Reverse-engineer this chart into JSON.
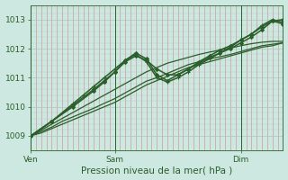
{
  "title": "Pression niveau de la mer( hPa )",
  "ylabel_values": [
    1009,
    1010,
    1011,
    1012,
    1013
  ],
  "xlim": [
    0,
    72
  ],
  "ylim": [
    1008.5,
    1013.5
  ],
  "xticks_pos": [
    0,
    24,
    60
  ],
  "xticklabels": [
    "Ven",
    "Sam",
    "Dim"
  ],
  "bg_color": "#cde8e0",
  "plot_bg_color": "#cde8e0",
  "grid_color_h": "#a8c8c0",
  "grid_color_v": "#d08888",
  "line_color": "#2a5e2a",
  "series": [
    {
      "x": [
        0,
        3,
        6,
        9,
        12,
        15,
        18,
        21,
        24,
        27,
        30,
        33,
        36,
        39,
        42,
        45,
        48,
        51,
        54,
        57,
        60,
        63,
        66,
        69,
        72
      ],
      "y": [
        1009.0,
        1009.1,
        1009.25,
        1009.4,
        1009.55,
        1009.7,
        1009.85,
        1010.0,
        1010.15,
        1010.35,
        1010.55,
        1010.75,
        1010.9,
        1011.05,
        1011.2,
        1011.35,
        1011.45,
        1011.55,
        1011.65,
        1011.75,
        1011.85,
        1011.95,
        1012.05,
        1012.1,
        1012.2
      ],
      "marker": null,
      "markersize": 0,
      "linewidth": 0.9
    },
    {
      "x": [
        0,
        3,
        6,
        9,
        12,
        15,
        18,
        21,
        24,
        27,
        30,
        33,
        36,
        39,
        42,
        45,
        48,
        51,
        54,
        57,
        60,
        63,
        66,
        69,
        72
      ],
      "y": [
        1009.0,
        1009.15,
        1009.3,
        1009.5,
        1009.65,
        1009.8,
        1009.95,
        1010.12,
        1010.28,
        1010.48,
        1010.68,
        1010.88,
        1011.0,
        1011.15,
        1011.3,
        1011.45,
        1011.55,
        1011.65,
        1011.72,
        1011.8,
        1011.9,
        1012.0,
        1012.1,
        1012.15,
        1012.2
      ],
      "marker": null,
      "markersize": 0,
      "linewidth": 0.9
    },
    {
      "x": [
        0,
        3,
        6,
        9,
        12,
        15,
        18,
        21,
        24,
        27,
        30,
        33,
        36,
        39,
        42,
        45,
        48,
        51,
        54,
        57,
        60,
        63,
        66,
        69,
        72
      ],
      "y": [
        1009.0,
        1009.2,
        1009.4,
        1009.6,
        1009.8,
        1010.0,
        1010.2,
        1010.4,
        1010.6,
        1010.8,
        1011.0,
        1011.2,
        1011.35,
        1011.5,
        1011.6,
        1011.7,
        1011.8,
        1011.88,
        1011.95,
        1012.02,
        1012.1,
        1012.17,
        1012.22,
        1012.25,
        1012.25
      ],
      "marker": null,
      "markersize": 0,
      "linewidth": 0.9
    },
    {
      "x": [
        0,
        6,
        12,
        18,
        21,
        24,
        27,
        30,
        33,
        36,
        39,
        42,
        45,
        48,
        51,
        54,
        57,
        60,
        63,
        66,
        69,
        72
      ],
      "y": [
        1009.0,
        1009.5,
        1010.0,
        1010.55,
        1010.85,
        1011.2,
        1011.55,
        1011.75,
        1011.6,
        1011.3,
        1011.1,
        1011.1,
        1011.3,
        1011.5,
        1011.7,
        1011.85,
        1012.0,
        1012.2,
        1012.4,
        1012.65,
        1012.95,
        1013.0
      ],
      "marker": "D",
      "markersize": 2.0,
      "linewidth": 1.1
    },
    {
      "x": [
        0,
        6,
        12,
        18,
        21,
        24,
        27,
        30,
        33,
        36,
        39,
        42,
        45,
        48,
        51,
        54,
        57,
        60,
        63,
        66,
        69,
        72
      ],
      "y": [
        1009.0,
        1009.5,
        1010.05,
        1010.6,
        1010.9,
        1011.2,
        1011.6,
        1011.85,
        1011.65,
        1011.1,
        1010.9,
        1011.1,
        1011.3,
        1011.55,
        1011.75,
        1011.95,
        1012.1,
        1012.3,
        1012.5,
        1012.75,
        1012.95,
        1012.85
      ],
      "marker": "D",
      "markersize": 2.0,
      "linewidth": 1.1
    },
    {
      "x": [
        0,
        6,
        12,
        15,
        18,
        21,
        24,
        27,
        30,
        33,
        36,
        39,
        42,
        45,
        48,
        51,
        54,
        57,
        60,
        63,
        66,
        69,
        72
      ],
      "y": [
        1009.0,
        1009.5,
        1010.1,
        1010.4,
        1010.7,
        1011.0,
        1011.3,
        1011.6,
        1011.8,
        1011.55,
        1011.0,
        1010.85,
        1011.0,
        1011.2,
        1011.45,
        1011.65,
        1011.85,
        1012.05,
        1012.3,
        1012.5,
        1012.8,
        1013.0,
        1012.9
      ],
      "marker": "+",
      "markersize": 3.5,
      "linewidth": 1.1
    }
  ]
}
